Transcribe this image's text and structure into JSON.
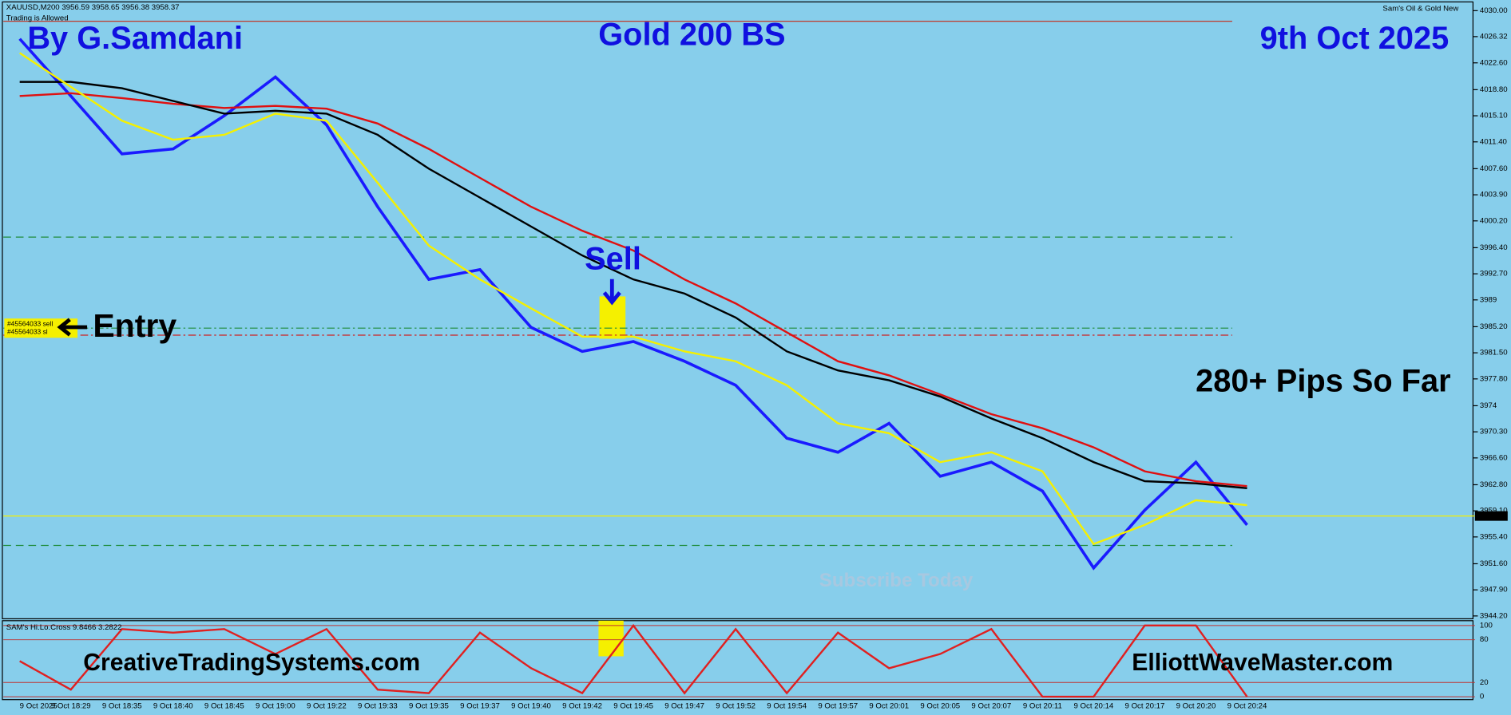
{
  "chart_data": {
    "type": "line",
    "header": "XAUUSD,M200  3956.59 3958.65 3956.38 3958.37",
    "status": "Trading is Allowed",
    "indicator_name": "Sam's Oil & Gold New",
    "author": "By G.Samdani",
    "title": "Gold 200 BS",
    "date": "9th Oct 2025",
    "annotations": {
      "sell": "Sell",
      "entry": "Entry",
      "pips": "280+ Pips So Far",
      "subscribe": "Subscribe Today",
      "site1": "CreativeTradingSystems.com",
      "site2": "ElliottWaveMaster.com",
      "order_sell": "#45564033 sell",
      "order_sl": "#45564033 sl"
    },
    "categories": [
      "9 Oct 2025",
      "9 Oct 18:29",
      "9 Oct 18:35",
      "9 Oct 18:40",
      "9 Oct 18:45",
      "9 Oct 19:00",
      "9 Oct 19:22",
      "9 Oct 19:33",
      "9 Oct 19:35",
      "9 Oct 19:37",
      "9 Oct 19:40",
      "9 Oct 19:42",
      "9 Oct 19:45",
      "9 Oct 19:47",
      "9 Oct 19:52",
      "9 Oct 19:54",
      "9 Oct 19:57",
      "9 Oct 20:01",
      "9 Oct 20:05",
      "9 Oct 20:07",
      "9 Oct 20:11",
      "9 Oct 20:14",
      "9 Oct 20:17",
      "9 Oct 20:20",
      "9 Oct 20:24"
    ],
    "series": [
      {
        "color": "#1a1aff",
        "values": [
          4026.0,
          4017.9,
          4009.7,
          4010.4,
          4015.1,
          4020.6,
          4013.8,
          4002.2,
          3991.9,
          3993.3,
          3985.1,
          3981.7,
          3983.1,
          3980.3,
          3976.9,
          3969.4,
          3967.4,
          3971.5,
          3964.0,
          3966.0,
          3961.9,
          3951.0,
          3959.2,
          3966.0,
          3957.1
        ]
      },
      {
        "color": "#e01010",
        "values": [
          4017.9,
          4018.3,
          4017.6,
          4016.8,
          4016.2,
          4016.5,
          4016.1,
          4014.0,
          4010.4,
          4006.3,
          4002.2,
          3998.8,
          3996.0,
          3991.9,
          3988.5,
          3984.4,
          3980.3,
          3978.3,
          3975.6,
          3972.8,
          3970.8,
          3968.1,
          3964.7,
          3963.3,
          3962.6
        ]
      },
      {
        "color": "#000000",
        "values": [
          4019.9,
          4019.9,
          4019.0,
          4017.2,
          4015.4,
          4015.8,
          4015.4,
          4012.4,
          4007.6,
          4003.5,
          3999.4,
          3995.3,
          3991.9,
          3989.9,
          3986.5,
          3981.7,
          3979.0,
          3977.6,
          3975.3,
          3972.2,
          3969.4,
          3966.0,
          3963.3,
          3963.0,
          3962.3
        ]
      },
      {
        "color": "#f5f000",
        "values": [
          4024.0,
          4019.2,
          4014.4,
          4011.7,
          4012.4,
          4015.4,
          4014.4,
          4005.6,
          3996.7,
          3991.9,
          3987.8,
          3983.8,
          3983.8,
          3981.7,
          3980.3,
          3976.9,
          3971.5,
          3970.1,
          3966.0,
          3967.4,
          3964.7,
          3954.4,
          3957.1,
          3960.6,
          3959.9
        ]
      }
    ],
    "levels": [
      {
        "value": 4028.5,
        "color": "#c0392b",
        "dash": "none"
      },
      {
        "value": 3997.9,
        "color": "#1e8c3a",
        "dash": "8 5"
      },
      {
        "value": 3985.0,
        "color": "#1e8c3a",
        "dash": "8 3 2 3"
      },
      {
        "value": 3984.0,
        "color": "#d02020",
        "dash": "8 3 2 3"
      },
      {
        "value": 3954.2,
        "color": "#1e8c3a",
        "dash": "8 5"
      }
    ],
    "current_price": 3958.37,
    "current_color": "#f5f000",
    "ylim": [
      3943.8,
      4031.1
    ],
    "yticks": [
      {
        "value": 4030,
        "label": "4030.00"
      },
      {
        "value": 4026.32,
        "label": "4026.32"
      },
      {
        "value": 4022.6,
        "label": "4022.60"
      },
      {
        "value": 4018.8,
        "label": "4018.80"
      },
      {
        "value": 4015.1,
        "label": "4015.10"
      },
      {
        "value": 4011.4,
        "label": "4011.40"
      },
      {
        "value": 4007.6,
        "label": "4007.60"
      },
      {
        "value": 4003.9,
        "label": "4003.90"
      },
      {
        "value": 4000.2,
        "label": "4000.20"
      },
      {
        "value": 3996.4,
        "label": "3996.40"
      },
      {
        "value": 3992.7,
        "label": "3992.70"
      },
      3989,
      {
        "value": 3985.2,
        "label": "3985.20"
      },
      {
        "value": 3981.5,
        "label": "3981.50"
      },
      {
        "value": 3977.8,
        "label": "3977.80"
      },
      3974,
      {
        "value": 3970.3,
        "label": "3970.30"
      },
      {
        "value": 3966.6,
        "label": "3966.60"
      },
      {
        "value": 3962.8,
        "label": "3962.80"
      },
      {
        "value": 3959.1,
        "label": "3959.10"
      },
      {
        "value": 3955.4,
        "label": "3955.40"
      },
      {
        "value": 3951.6,
        "label": "3951.60"
      },
      {
        "value": 3947.9,
        "label": "3947.90"
      },
      {
        "value": 3944.2,
        "label": "3944.20"
      }
    ],
    "oscillator": {
      "title": "SAM's Hi.Lo.Cross 9.8466 3.2822",
      "color": "#e02020",
      "values": [
        50,
        10,
        95,
        90,
        95,
        60,
        95,
        10,
        5,
        90,
        40,
        5,
        100,
        5,
        95,
        5,
        90,
        40,
        60,
        95,
        0,
        0,
        100,
        100,
        0
      ],
      "ylim": [
        0,
        100
      ],
      "yticks": [
        0,
        20,
        80,
        100
      ]
    }
  }
}
